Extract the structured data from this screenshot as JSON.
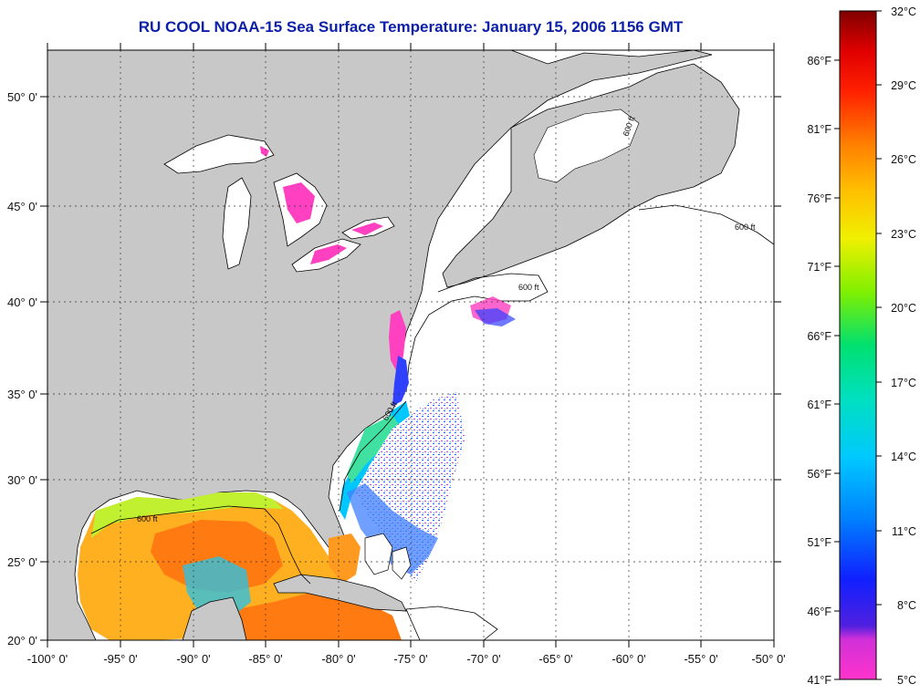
{
  "title": "RU COOL  NOAA-15  Sea Surface Temperature:  January 15, 2006 1156 GMT",
  "map": {
    "lat_labels": [
      "50° 0'",
      "45° 0'",
      "40° 0'",
      "35° 0'",
      "30° 0'",
      "25° 0'",
      "20° 0'"
    ],
    "lon_labels": [
      "-100° 0'",
      "-95° 0'",
      "-90° 0'",
      "-85° 0'",
      "-80° 0'",
      "-75° 0'",
      "-70° 0'",
      "-65° 0'",
      "-60° 0'",
      "-55° 0'",
      "-50° 0'"
    ],
    "isobath_label": "600 ft",
    "colors": {
      "land": "#c8c8c8",
      "ocean_nodata": "#ffffff",
      "coast": "#000000"
    }
  },
  "colorbar": {
    "celsius_labels": [
      "32°C",
      "29°C",
      "26°C",
      "23°C",
      "20°C",
      "17°C",
      "14°C",
      "11°C",
      "8°C",
      "5°C"
    ],
    "fahrenheit_labels": [
      "86°F",
      "81°F",
      "76°F",
      "71°F",
      "66°F",
      "61°F",
      "56°F",
      "51°F",
      "46°F",
      "41°F"
    ],
    "color_stops": [
      "#ff33cc",
      "#7020d0",
      "#1020ff",
      "#00a0ff",
      "#00e0e0",
      "#00e070",
      "#a0f000",
      "#ffff00",
      "#ffa000",
      "#ff4000",
      "#ff0000",
      "#800000"
    ]
  }
}
